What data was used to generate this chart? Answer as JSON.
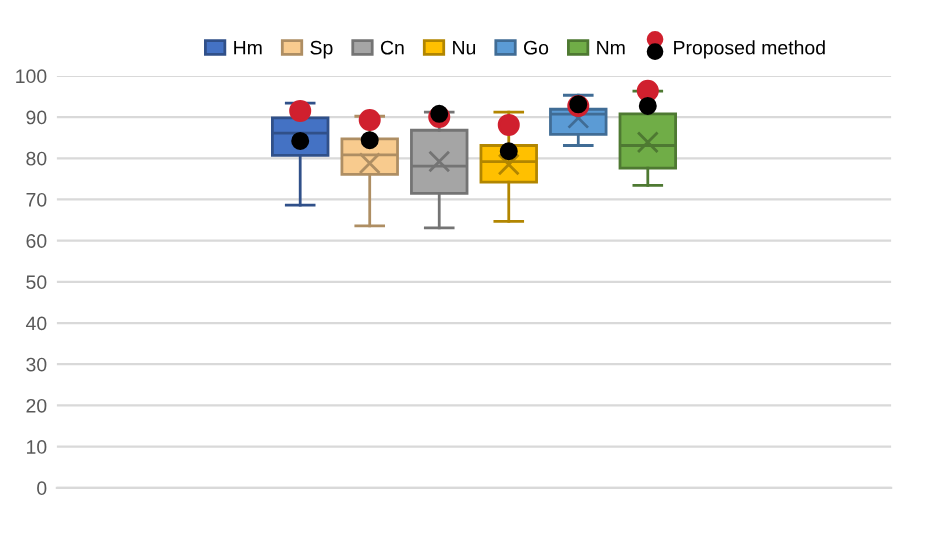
{
  "chart_data": {
    "type": "box",
    "categories": [
      null,
      null,
      null,
      null,
      null,
      null,
      null,
      null,
      null,
      null,
      null,
      null
    ],
    "series": [
      {
        "name": "Hm",
        "color": "#4472c4",
        "boxes": [
          null,
          null,
          null,
          {
            "low": 68.6,
            "q1": 80.7,
            "median": 86.1,
            "q3": 89.8,
            "high": 93.4
          },
          null,
          null,
          null,
          null,
          null,
          null,
          null,
          null
        ]
      },
      {
        "name": "Sp",
        "color": "#f8cb8e",
        "boxes": [
          null,
          null,
          null,
          null,
          {
            "low": 63.6,
            "q1": 76.1,
            "median": 80.8,
            "q3": 84.7,
            "high": 90.2,
            "mean": 78.8
          },
          null,
          null,
          null,
          null,
          null,
          null,
          null
        ]
      },
      {
        "name": "Cn",
        "color": "#a5a5a5",
        "boxes": [
          null,
          null,
          null,
          null,
          null,
          {
            "low": 63.1,
            "q1": 71.5,
            "median": 78.1,
            "q3": 86.8,
            "high": 91.2,
            "mean": 79.2
          },
          null,
          null,
          null,
          null,
          null,
          null
        ]
      },
      {
        "name": "Nu",
        "color": "#ffc000",
        "boxes": [
          null,
          null,
          null,
          null,
          null,
          null,
          {
            "low": 64.7,
            "q1": 74.2,
            "median": 79.2,
            "q3": 83.1,
            "high": 91.2,
            "mean": 78.5
          },
          null,
          null,
          null,
          null,
          null
        ]
      },
      {
        "name": "Go",
        "color": "#5b9bd5",
        "boxes": [
          null,
          null,
          null,
          null,
          null,
          null,
          null,
          {
            "low": 83.1,
            "q1": 85.8,
            "median": 90.7,
            "q3": 91.9,
            "high": 95.3,
            "mean": 89.8
          },
          null,
          null,
          null,
          null
        ]
      },
      {
        "name": "Nm",
        "color": "#70ad47",
        "boxes": [
          null,
          null,
          null,
          null,
          null,
          null,
          null,
          null,
          {
            "low": 73.4,
            "q1": 77.6,
            "median": 83.1,
            "q3": 90.8,
            "high": 96.3,
            "mean": 83.9
          },
          null,
          null,
          null
        ]
      },
      {
        "type": "scatter",
        "color": "#d0202e",
        "values": [
          null,
          null,
          null,
          91.5,
          89.3,
          90.0,
          88.1,
          92.7,
          96.4,
          null,
          null,
          null
        ]
      },
      {
        "name": "Proposed method",
        "type": "scatter",
        "color": "#000000",
        "values": [
          null,
          null,
          null,
          84.2,
          84.4,
          90.8,
          81.7,
          93.1,
          92.7,
          null,
          null,
          null
        ]
      }
    ],
    "ylim": [
      0,
      100
    ],
    "yticks": [
      0,
      10,
      20,
      30,
      40,
      50,
      60,
      70,
      80,
      90,
      100
    ],
    "grid": "y",
    "legend": "top",
    "tick_labels": "y",
    "marker": "circle"
  }
}
